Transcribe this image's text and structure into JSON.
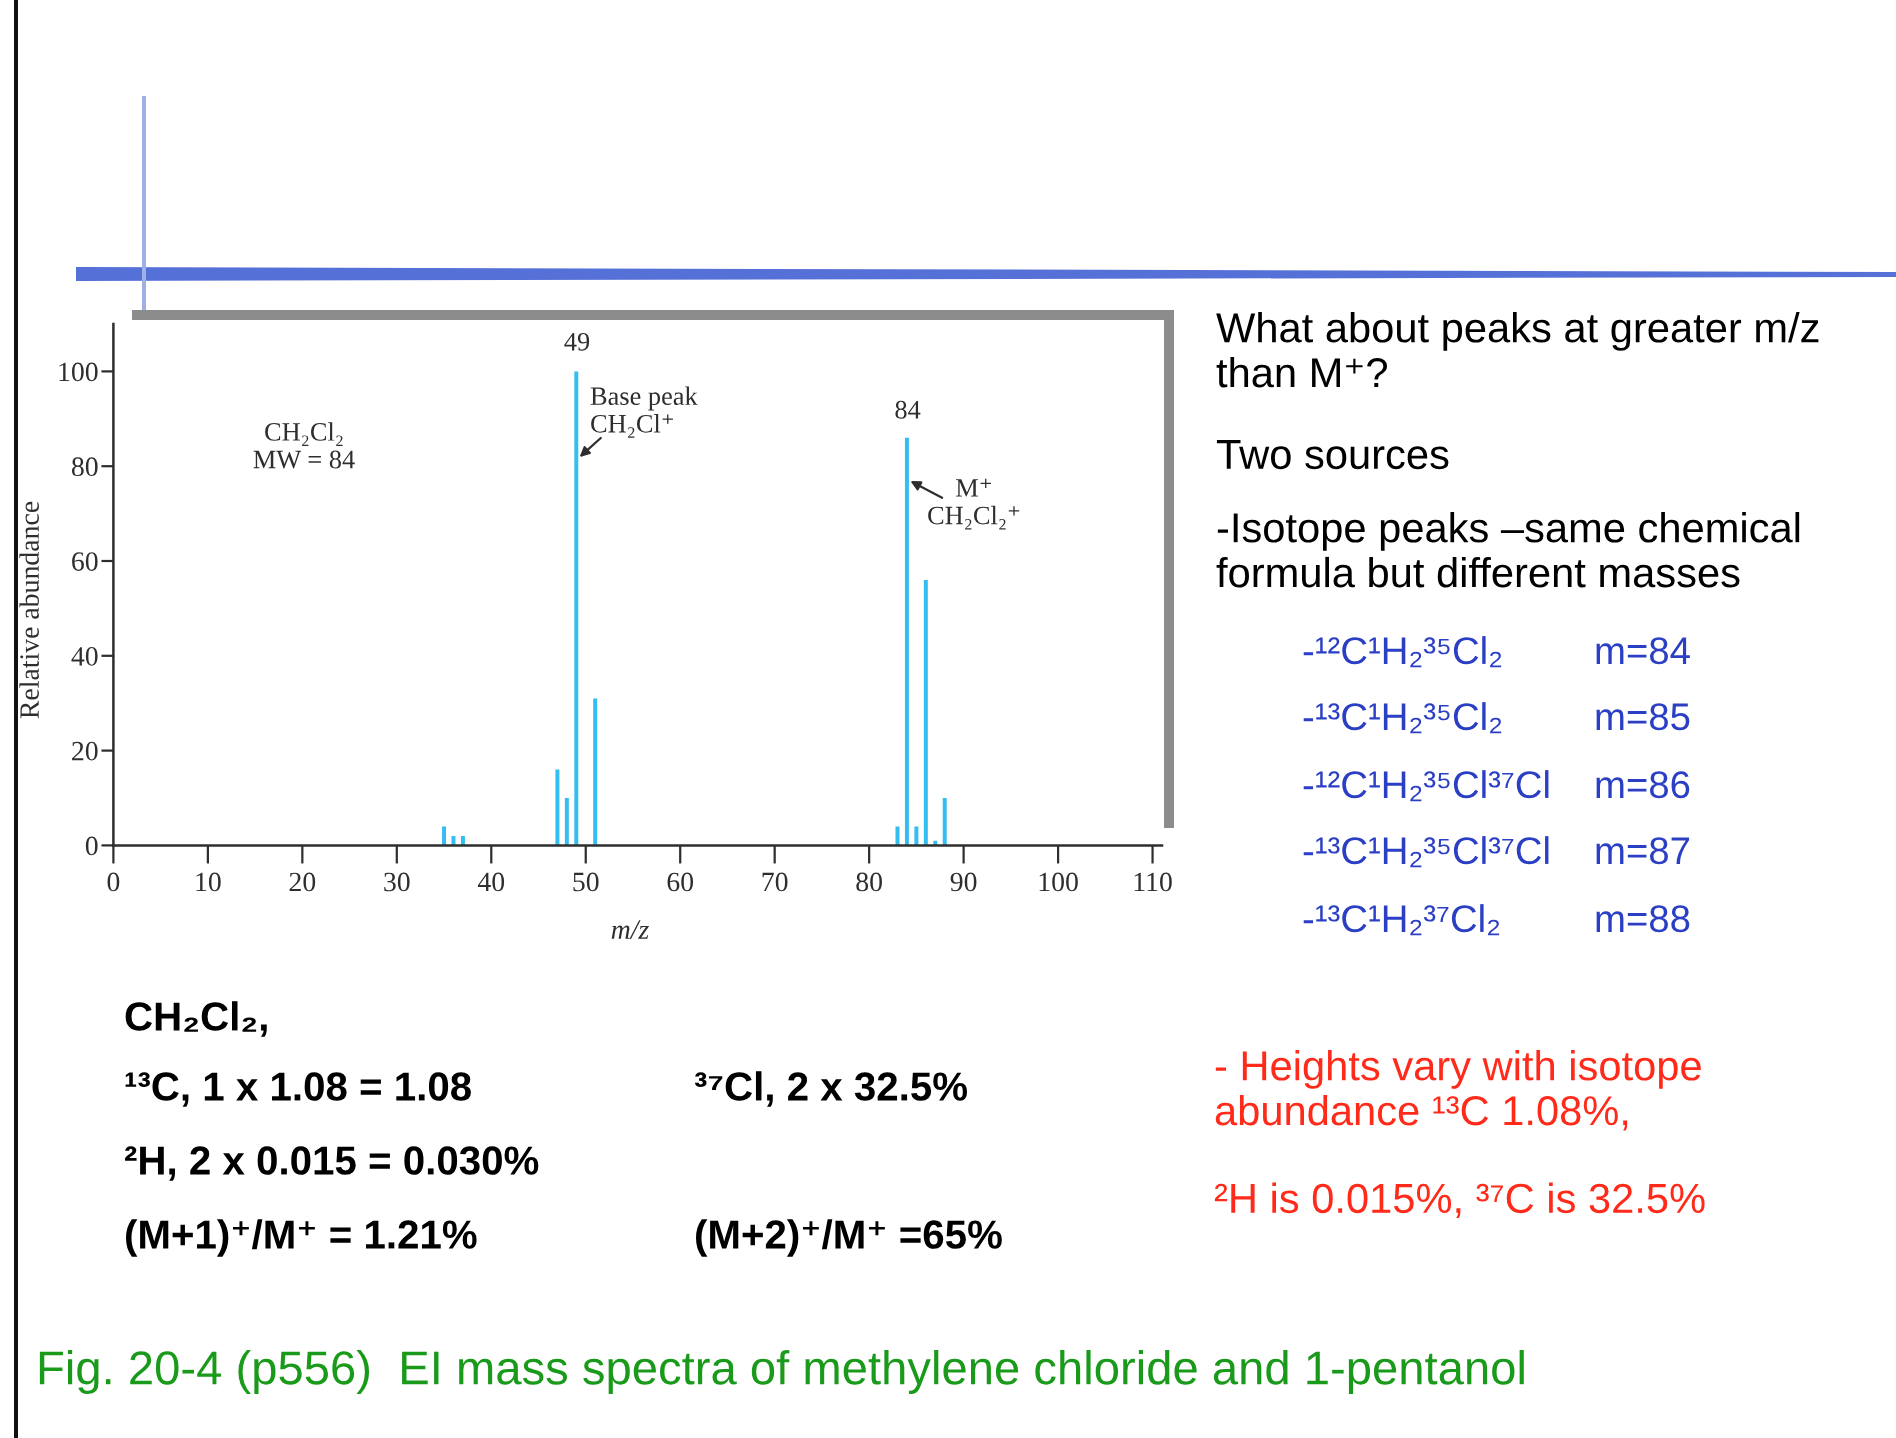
{
  "chart_data": {
    "type": "bar",
    "xlabel": "m/z",
    "ylabel": "Relative abundance",
    "x": [
      35,
      36,
      37,
      47,
      48,
      49,
      51,
      83,
      84,
      85,
      86,
      87,
      88
    ],
    "values": [
      4,
      2,
      2,
      16,
      10,
      100,
      31,
      4,
      86,
      4,
      56,
      1,
      10
    ],
    "color": "#33bdf0",
    "xlim": [
      0,
      111
    ],
    "xticks": [
      0,
      10,
      20,
      30,
      40,
      50,
      60,
      70,
      80,
      90,
      100,
      110
    ],
    "ylim": [
      0,
      110
    ],
    "yticks": [
      0,
      20,
      40,
      60,
      80,
      100
    ],
    "annotations": [
      "49",
      "Base peak\nCH₂Cl⁺",
      "84",
      "M⁺\nCH₂Cl₂⁺",
      "CH₂Cl₂\nMW = 84",
      "What about peaks at greater m/z\nthan M⁺?",
      "Two sources",
      "-Isotope peaks –same chemical\nformula but different masses",
      "-¹²C¹H₂³⁵Cl₂",
      "m=84",
      "-¹³C¹H₂³⁵Cl₂",
      "m=85",
      "-¹²C¹H₂³⁵Cl³⁷Cl",
      "m=86",
      "-¹³C¹H₂³⁵Cl³⁷Cl",
      "m=87",
      "-¹³C¹H₂³⁷Cl₂",
      "m=88",
      "CH₂Cl₂,",
      "¹³C, 1 x 1.08 = 1.08",
      "³⁷Cl, 2 x 32.5%",
      "²H, 2 x 0.015 = 0.030%",
      "(M+1)⁺/M⁺ = 1.21%",
      "(M+2)⁺/M⁺ =65%",
      "- Heights vary with isotope\nabundance ¹³C 1.08%,",
      "²H is 0.015%, ³⁷C is 32.5%",
      "Fig. 20-4 (p556)  EI mass spectra of methylene chloride and 1-pentanol"
    ]
  }
}
